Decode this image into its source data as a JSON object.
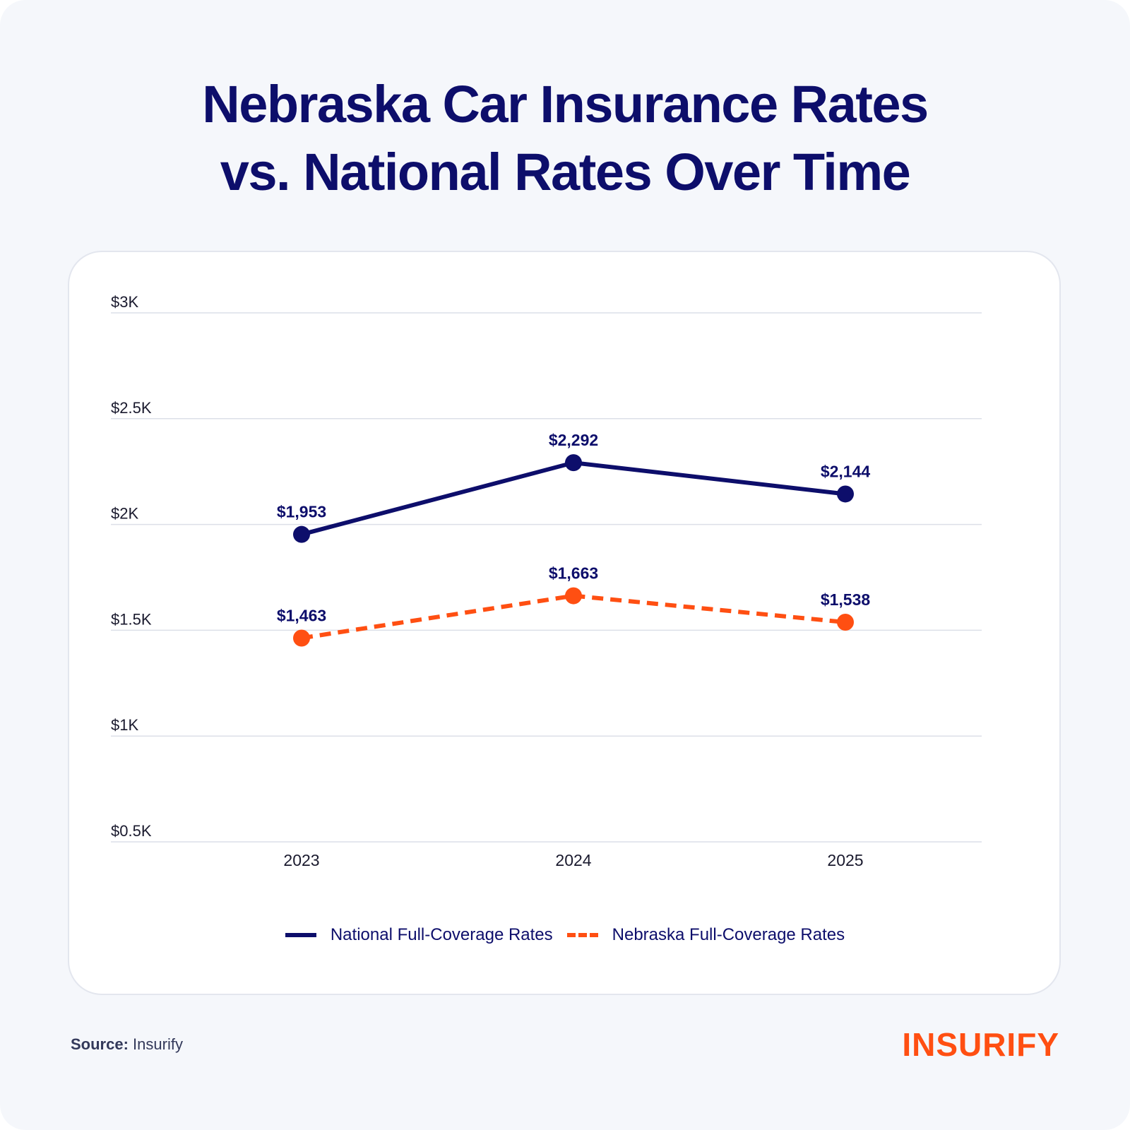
{
  "chart_data": {
    "type": "line",
    "title": "Nebraska Car Insurance Rates vs. National Rates Over Time",
    "title_lines": [
      "Nebraska Car Insurance Rates",
      "vs. National Rates Over Time"
    ],
    "categories": [
      "2023",
      "2024",
      "2025"
    ],
    "series": [
      {
        "name": "National Full-Coverage Rates",
        "values": [
          1953,
          2292,
          2144
        ],
        "labels": [
          "$1,953",
          "$2,292",
          "$2,144"
        ],
        "color": "#0d0e6b",
        "style": "solid"
      },
      {
        "name": "Nebraska Full-Coverage Rates",
        "values": [
          1463,
          1663,
          1538
        ],
        "labels": [
          "$1,463",
          "$1,663",
          "$1,538"
        ],
        "color": "#ff4f12",
        "style": "dashed"
      }
    ],
    "ylim": [
      500,
      3000
    ],
    "yticks": [
      500,
      1000,
      1500,
      2000,
      2500,
      3000
    ],
    "ytick_labels": [
      "$0.5K",
      "$1K",
      "$1.5K",
      "$2K",
      "$2.5K",
      "$3K"
    ],
    "grid": true,
    "legend": "bottom-center",
    "xlabel": "",
    "ylabel": ""
  },
  "footer": {
    "source_label": "Source:",
    "source_value": "Insurify",
    "logo": "INSURIFY"
  }
}
